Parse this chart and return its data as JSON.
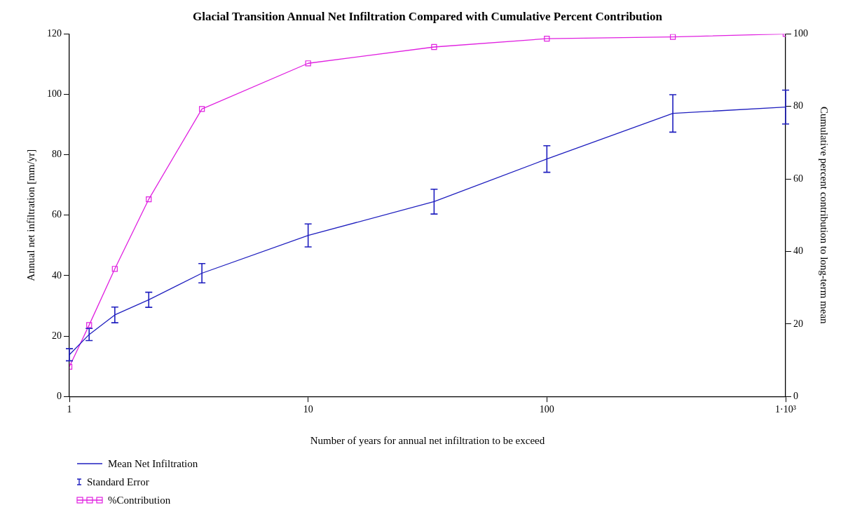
{
  "chart_data": {
    "type": "line",
    "title": "Glacial Transition Annual Net Infiltration Compared with Cumulative Percent Contribution",
    "xlabel": "Number of years for annual net infiltration to be exceed",
    "ylabel": "Annual net infiltration [mm/yr]",
    "y2label": "Cumulative percent contribution to long-term mean",
    "log": "x",
    "xlim": [
      1,
      1000
    ],
    "xticks": [
      1,
      10,
      100,
      {
        "value": 1000,
        "label": "1·10³"
      }
    ],
    "ylim": [
      0,
      120
    ],
    "yticks": [
      0,
      20,
      40,
      60,
      80,
      100,
      120
    ],
    "y2lim": [
      0,
      100
    ],
    "y2ticks": [
      0,
      20,
      40,
      60,
      80,
      100
    ],
    "grid": false,
    "legend": "bottom left",
    "annotations": [
      "Standard Error"
    ],
    "series": [
      {
        "name": "Mean Net Infiltration",
        "color": "#1f1fbf",
        "marker": "none",
        "x": [
          1,
          1.21,
          1.55,
          2.15,
          3.59,
          10,
          33.7,
          100,
          337,
          1000
        ],
        "values": [
          13.8,
          20.5,
          27,
          32,
          40.8,
          53.3,
          64.5,
          78.6,
          93.7,
          95.8
        ],
        "errors": [
          2,
          2,
          2.6,
          2.5,
          3.2,
          3.8,
          4.1,
          4.4,
          6.2,
          5.6
        ]
      },
      {
        "name": "%Contribution",
        "color": "#e020e0",
        "marker": "square",
        "axis": "y2",
        "x": [
          1,
          1.21,
          1.55,
          2.15,
          3.59,
          10,
          33.7,
          100,
          337,
          1000
        ],
        "values": [
          8.2,
          19.7,
          35.2,
          54.4,
          79.3,
          91.9,
          96.4,
          98.7,
          99.2,
          100
        ]
      }
    ]
  }
}
